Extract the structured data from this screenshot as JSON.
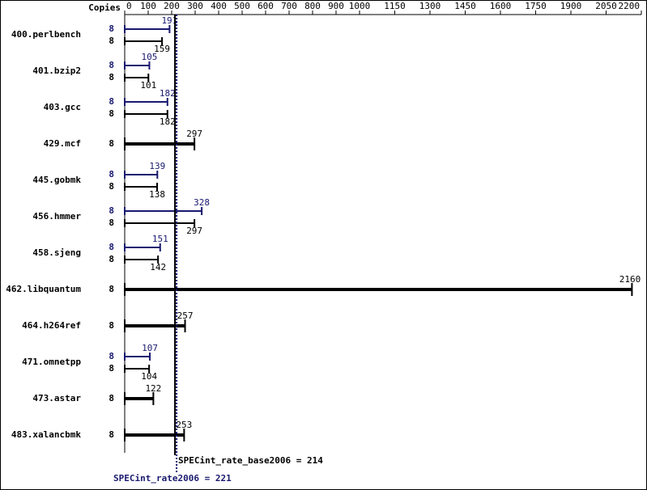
{
  "chart_data": {
    "type": "bar",
    "copies_header": "Copies",
    "categories": [
      "400.perlbench",
      "401.bzip2",
      "403.gcc",
      "429.mcf",
      "445.gobmk",
      "456.hmmer",
      "458.sjeng",
      "462.libquantum",
      "464.h264ref",
      "471.omnetpp",
      "473.astar",
      "483.xalancbmk"
    ],
    "series": [
      {
        "color": "#191970",
        "values": [
          191,
          105,
          182,
          null,
          139,
          328,
          151,
          null,
          null,
          107,
          null,
          null
        ],
        "copies": [
          8,
          8,
          8,
          null,
          8,
          8,
          8,
          null,
          null,
          8,
          null,
          null
        ]
      },
      {
        "color": "#000000",
        "values": [
          159,
          101,
          182,
          297,
          138,
          297,
          142,
          2160,
          257,
          104,
          122,
          253
        ],
        "copies": [
          8,
          8,
          8,
          8,
          8,
          8,
          8,
          8,
          8,
          8,
          8,
          8
        ]
      }
    ],
    "xlim": [
      0,
      2200
    ],
    "xticks": [
      0,
      100,
      200,
      300,
      400,
      500,
      600,
      700,
      800,
      900,
      1000,
      1150,
      1300,
      1450,
      1600,
      1750,
      1900,
      2050,
      2200
    ],
    "reference_lines": [
      {
        "label": "SPECint_rate_base2006 = 214",
        "value": 214,
        "color": "#000000"
      },
      {
        "label": "SPECint_rate2006 = 221",
        "value": 221,
        "color": "#191970"
      }
    ]
  }
}
